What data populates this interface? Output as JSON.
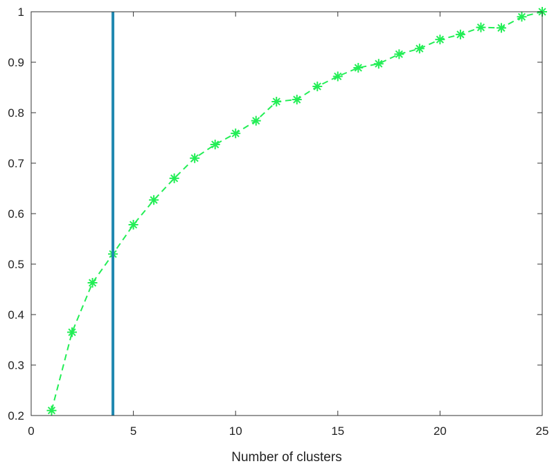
{
  "chart_data": {
    "type": "line",
    "title": "",
    "xlabel": "Number of clusters",
    "ylabel": "",
    "xlim": [
      0,
      25
    ],
    "ylim": [
      0.2,
      1
    ],
    "xticks": [
      0,
      5,
      10,
      15,
      20,
      25
    ],
    "yticks": [
      0.2,
      0.3,
      0.4,
      0.5,
      0.6,
      0.7,
      0.8,
      0.9,
      1
    ],
    "xtick_labels": [
      "0",
      "5",
      "10",
      "15",
      "20",
      "25"
    ],
    "ytick_labels": [
      "0.2",
      "0.3",
      "0.4",
      "0.5",
      "0.6",
      "0.7",
      "0.8",
      "0.9",
      "1"
    ],
    "grid": false,
    "series": [
      {
        "color": "#22ee55",
        "line_style": "dashed",
        "marker": "asterisk",
        "x": [
          1,
          2,
          3,
          4,
          5,
          6,
          7,
          8,
          9,
          10,
          11,
          12,
          13,
          14,
          15,
          16,
          17,
          18,
          19,
          20,
          21,
          22,
          23,
          24,
          25
        ],
        "y": [
          0.21,
          0.365,
          0.463,
          0.52,
          0.578,
          0.627,
          0.67,
          0.71,
          0.737,
          0.759,
          0.784,
          0.822,
          0.826,
          0.852,
          0.872,
          0.889,
          0.897,
          0.916,
          0.927,
          0.945,
          0.955,
          0.969,
          0.968,
          0.99,
          1.0
        ]
      }
    ],
    "vertical_line": {
      "x": 4,
      "color": "#1f88b0"
    }
  }
}
